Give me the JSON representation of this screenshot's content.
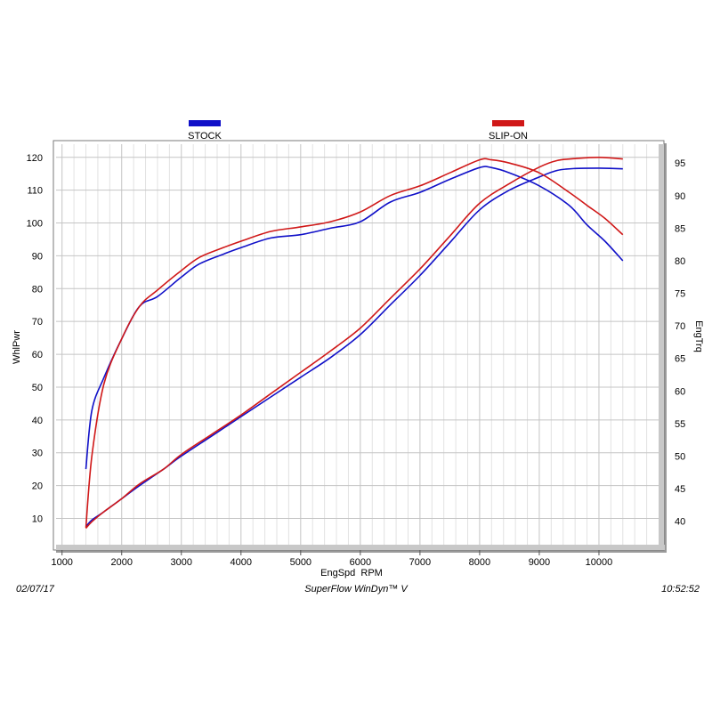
{
  "chart_data": {
    "type": "line",
    "xlabel": "EngSpd  RPM",
    "ylabel": "WhlPwr",
    "y2label": "EngTrq",
    "xlim": [
      900,
      11000
    ],
    "ylim": [
      2,
      124
    ],
    "y2lim": [
      36.4,
      97.9
    ],
    "x_ticks": [
      1000,
      2000,
      3000,
      4000,
      5000,
      6000,
      7000,
      8000,
      9000,
      10000
    ],
    "y_ticks": [
      10,
      20,
      30,
      40,
      50,
      60,
      70,
      80,
      90,
      100,
      110,
      120
    ],
    "y2_ticks": [
      40,
      45,
      50,
      55,
      60,
      65,
      70,
      75,
      80,
      85,
      90,
      95
    ],
    "grid": true,
    "legend_position": "top",
    "series": [
      {
        "name": "STOCK",
        "color": "#1010c8",
        "power": [
          [
            1400,
            7.5
          ],
          [
            1500,
            9.5
          ],
          [
            1700,
            12
          ],
          [
            2000,
            16
          ],
          [
            2300,
            20
          ],
          [
            2700,
            25
          ],
          [
            3000,
            29
          ],
          [
            3500,
            35
          ],
          [
            4000,
            41
          ],
          [
            4500,
            47
          ],
          [
            5000,
            53
          ],
          [
            5500,
            59
          ],
          [
            6000,
            66
          ],
          [
            6500,
            75
          ],
          [
            7000,
            84
          ],
          [
            7500,
            94
          ],
          [
            8000,
            104
          ],
          [
            8500,
            110
          ],
          [
            9000,
            114
          ],
          [
            9300,
            116
          ],
          [
            9600,
            116.6
          ],
          [
            10000,
            116.7
          ],
          [
            10400,
            116.5
          ]
        ],
        "torque": [
          [
            1400,
            48
          ],
          [
            1500,
            57
          ],
          [
            1700,
            62
          ],
          [
            2000,
            68
          ],
          [
            2300,
            73
          ],
          [
            2600,
            74.5
          ],
          [
            3000,
            77.5
          ],
          [
            3300,
            79.5
          ],
          [
            3700,
            81
          ],
          [
            4000,
            82
          ],
          [
            4500,
            83.5
          ],
          [
            5000,
            84
          ],
          [
            5500,
            85
          ],
          [
            6000,
            86
          ],
          [
            6500,
            89
          ],
          [
            7000,
            90.5
          ],
          [
            7500,
            92.5
          ],
          [
            8000,
            94.3
          ],
          [
            8200,
            94.3
          ],
          [
            8500,
            93.5
          ],
          [
            9000,
            91.5
          ],
          [
            9500,
            88.5
          ],
          [
            9800,
            85.5
          ],
          [
            10100,
            83
          ],
          [
            10400,
            80
          ]
        ]
      },
      {
        "name": "SLIP-ON",
        "color": "#d01818",
        "power": [
          [
            1400,
            7
          ],
          [
            1500,
            9
          ],
          [
            1700,
            12
          ],
          [
            2000,
            16
          ],
          [
            2300,
            20.5
          ],
          [
            2700,
            25
          ],
          [
            3000,
            29.5
          ],
          [
            3500,
            35.5
          ],
          [
            4000,
            41.5
          ],
          [
            4500,
            48
          ],
          [
            5000,
            54.5
          ],
          [
            5500,
            61
          ],
          [
            6000,
            68
          ],
          [
            6500,
            77
          ],
          [
            7000,
            86
          ],
          [
            7500,
            96
          ],
          [
            8000,
            106
          ],
          [
            8500,
            112
          ],
          [
            9000,
            117
          ],
          [
            9300,
            119
          ],
          [
            9600,
            119.6
          ],
          [
            10000,
            120
          ],
          [
            10400,
            119.5
          ]
        ],
        "torque": [
          [
            1400,
            39
          ],
          [
            1500,
            50
          ],
          [
            1700,
            61
          ],
          [
            2000,
            68
          ],
          [
            2300,
            73
          ],
          [
            2600,
            75.5
          ],
          [
            3000,
            78.5
          ],
          [
            3300,
            80.5
          ],
          [
            3700,
            82
          ],
          [
            4000,
            83
          ],
          [
            4500,
            84.5
          ],
          [
            5000,
            85.2
          ],
          [
            5500,
            86
          ],
          [
            6000,
            87.5
          ],
          [
            6500,
            90
          ],
          [
            7000,
            91.5
          ],
          [
            7500,
            93.5
          ],
          [
            8000,
            95.5
          ],
          [
            8200,
            95.5
          ],
          [
            8500,
            95
          ],
          [
            9000,
            93.5
          ],
          [
            9500,
            90.5
          ],
          [
            9800,
            88.5
          ],
          [
            10100,
            86.5
          ],
          [
            10400,
            84
          ]
        ]
      }
    ]
  },
  "footer": {
    "date": "02/07/17",
    "software": "SuperFlow WinDyn™ V",
    "time": "10:52:52"
  }
}
